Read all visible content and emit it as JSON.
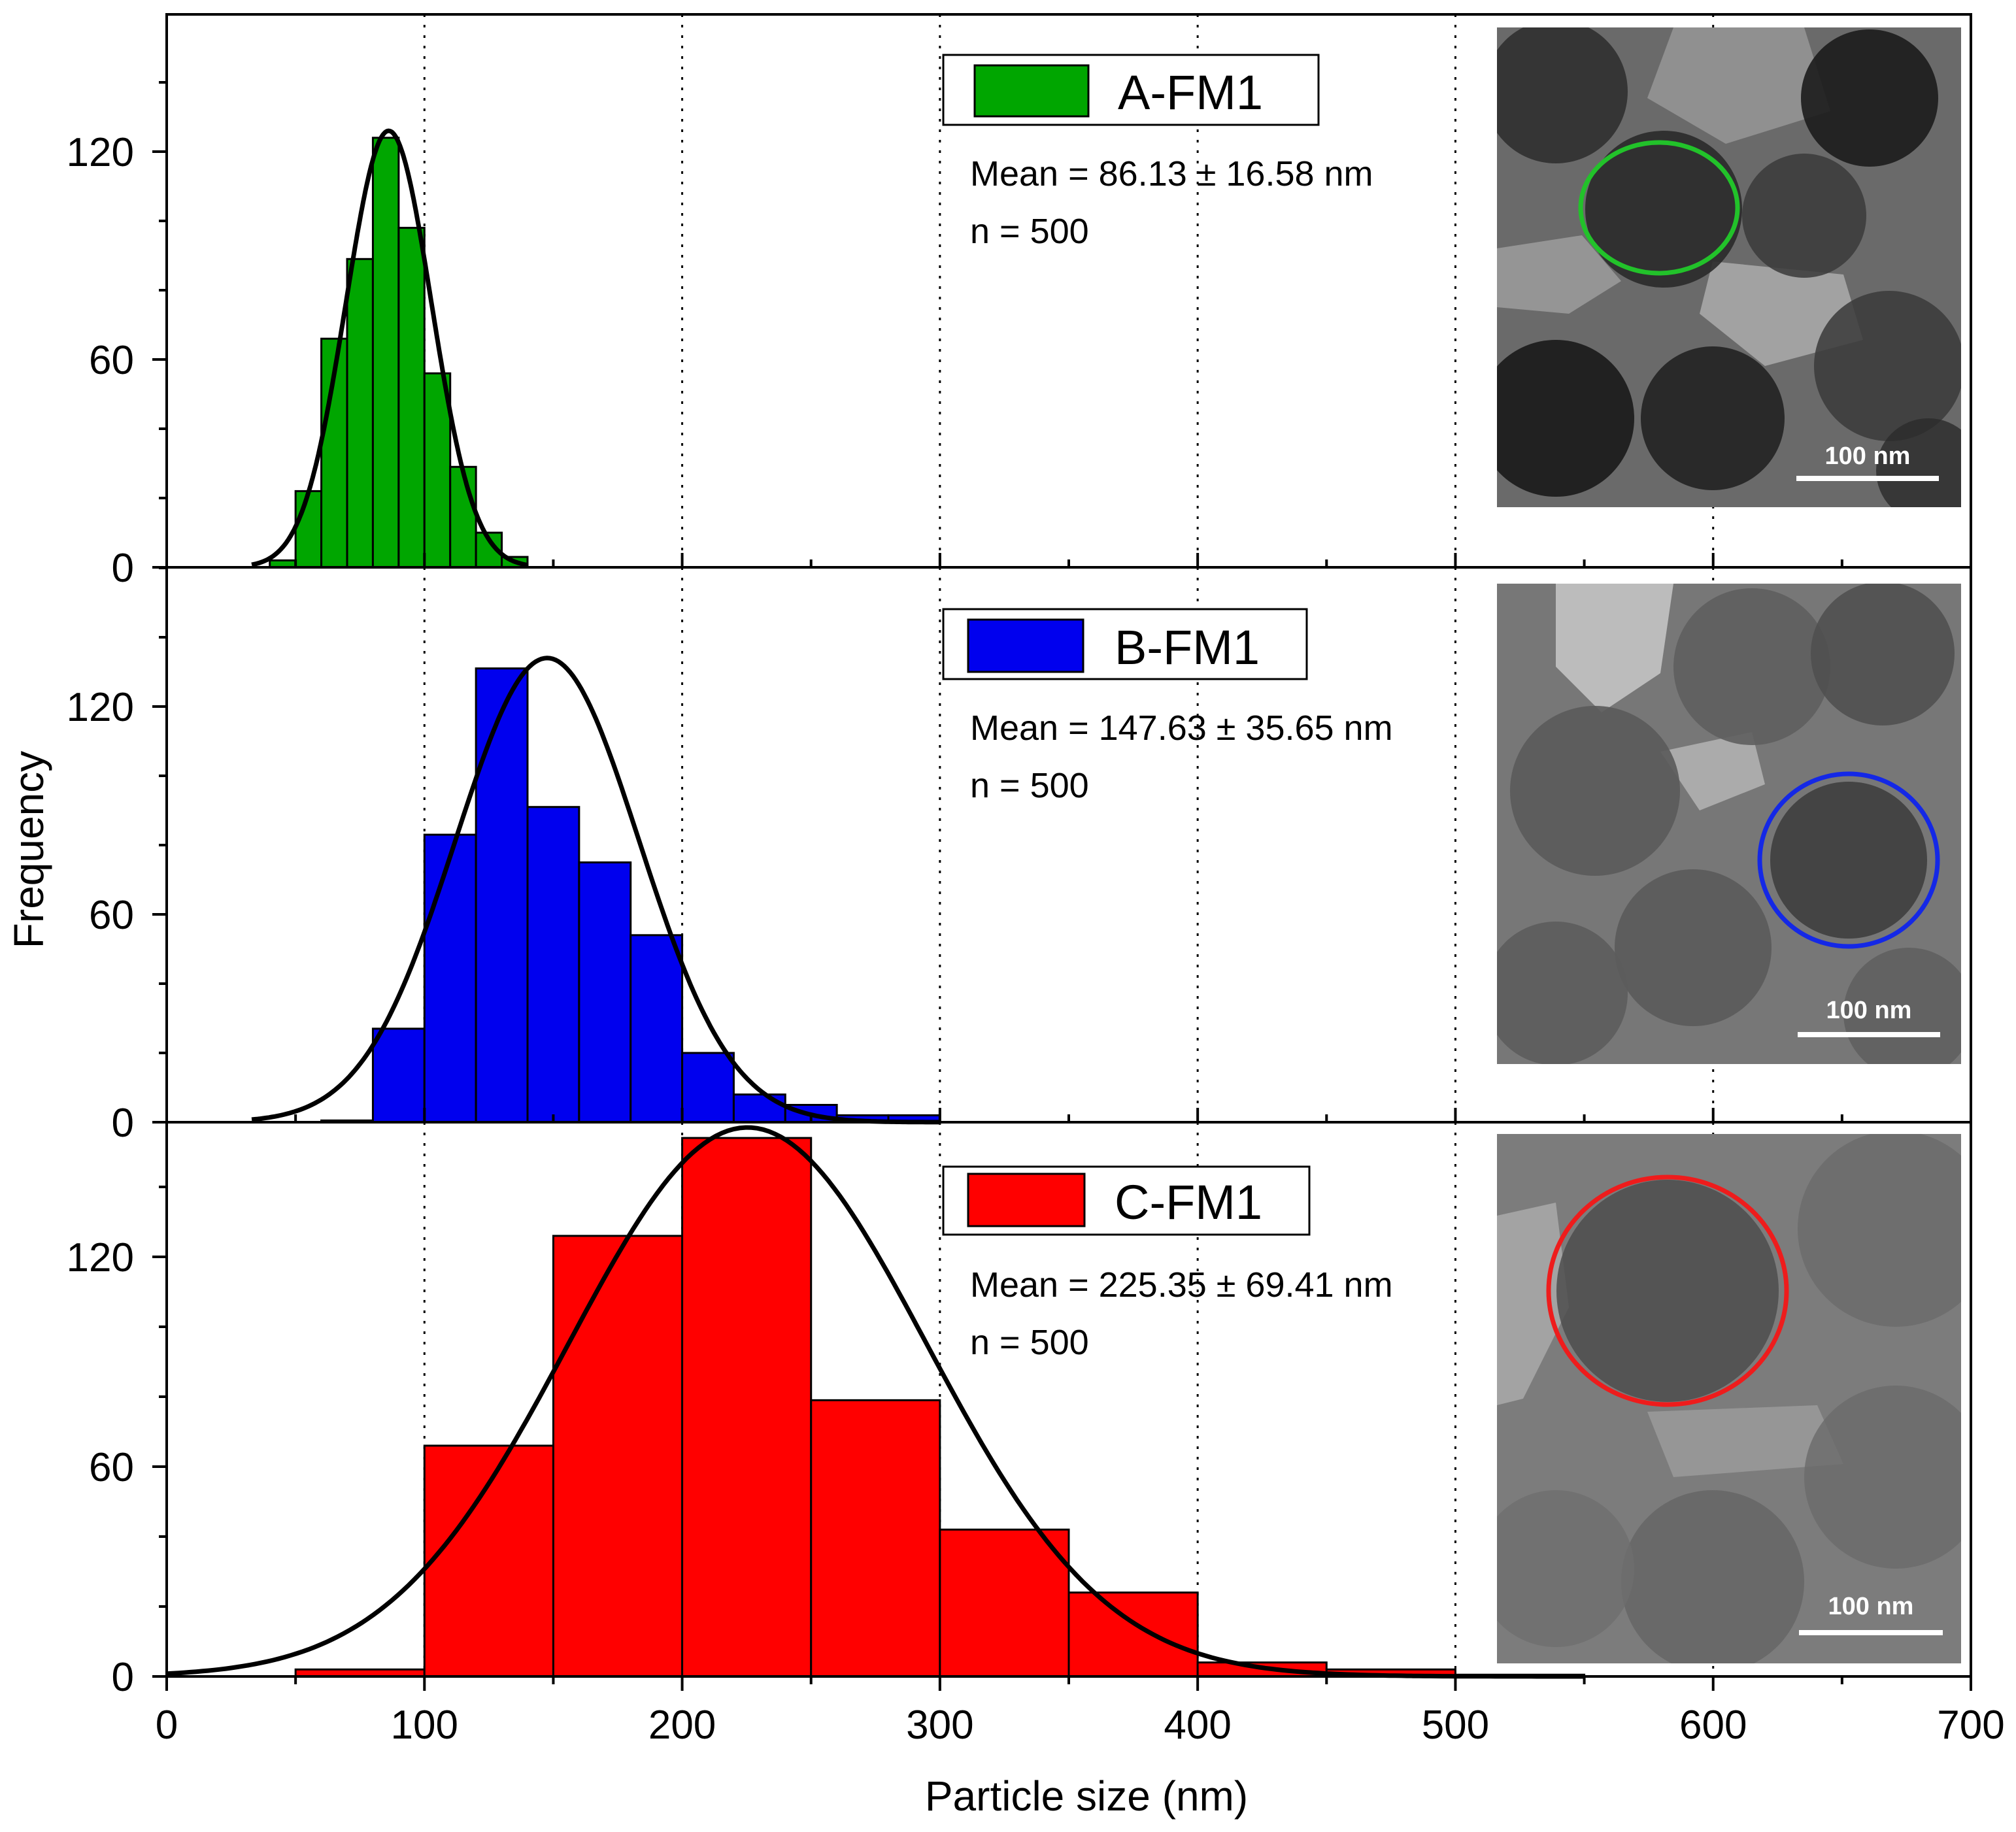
{
  "chart_data": {
    "type": "bar",
    "shared_x": {
      "label": "Particle size (nm)",
      "range": [
        0,
        700
      ],
      "ticks": [
        0,
        100,
        200,
        300,
        400,
        500,
        600,
        700
      ],
      "tick_labels": [
        "0",
        "100",
        "200",
        "300",
        "400",
        "500",
        "600",
        "700"
      ],
      "grid": "dotted vertical lines at 100, 200, 300, 400, 500, 600"
    },
    "ylabel": "Frequency",
    "panels": [
      {
        "name": "A-FM1",
        "color": "#00a600",
        "ylim": [
          0,
          160
        ],
        "yticks": [
          0,
          60,
          120
        ],
        "ytick_labels": [
          "0",
          "60",
          "120"
        ],
        "bin_width": 10,
        "bins": [
          {
            "x0": 40,
            "x1": 50,
            "value": 2
          },
          {
            "x0": 50,
            "x1": 60,
            "value": 22
          },
          {
            "x0": 60,
            "x1": 70,
            "value": 66
          },
          {
            "x0": 70,
            "x1": 80,
            "value": 89
          },
          {
            "x0": 80,
            "x1": 90,
            "value": 124
          },
          {
            "x0": 90,
            "x1": 100,
            "value": 98
          },
          {
            "x0": 100,
            "x1": 110,
            "value": 56
          },
          {
            "x0": 110,
            "x1": 120,
            "value": 29
          },
          {
            "x0": 120,
            "x1": 130,
            "value": 10
          },
          {
            "x0": 130,
            "x1": 140,
            "value": 3
          }
        ],
        "fit": {
          "mean": 86.13,
          "sd": 16.58,
          "peak": 126,
          "range": [
            33,
            140
          ]
        },
        "legend_label": "A-FM1",
        "mean_text": "Mean = 86.13 ± 16.58 nm",
        "n_text": "n = 500",
        "tem_scale": "100 nm",
        "circle_color": "#22c22a"
      },
      {
        "name": "B-FM1",
        "color": "#0000ee",
        "ylim": [
          0,
          160
        ],
        "yticks": [
          0,
          60,
          120
        ],
        "ytick_labels": [
          "0",
          "60",
          "120"
        ],
        "bin_width": 20,
        "bins": [
          {
            "x0": 60,
            "x1": 80,
            "value": 0.5
          },
          {
            "x0": 80,
            "x1": 100,
            "value": 27
          },
          {
            "x0": 100,
            "x1": 120,
            "value": 83
          },
          {
            "x0": 120,
            "x1": 140,
            "value": 131
          },
          {
            "x0": 140,
            "x1": 160,
            "value": 91
          },
          {
            "x0": 160,
            "x1": 180,
            "value": 75
          },
          {
            "x0": 180,
            "x1": 200,
            "value": 54
          },
          {
            "x0": 200,
            "x1": 220,
            "value": 20
          },
          {
            "x0": 220,
            "x1": 240,
            "value": 8
          },
          {
            "x0": 240,
            "x1": 260,
            "value": 5
          },
          {
            "x0": 260,
            "x1": 280,
            "value": 2
          },
          {
            "x0": 280,
            "x1": 300,
            "value": 2
          }
        ],
        "fit": {
          "mean": 147.63,
          "sd": 35.65,
          "peak": 134,
          "range": [
            33,
            300
          ]
        },
        "legend_label": "B-FM1",
        "mean_text": "Mean = 147.63 ± 35.65 nm",
        "n_text": "n = 500",
        "tem_scale": "100 nm",
        "circle_color": "#1428e6"
      },
      {
        "name": "C-FM1",
        "color": "#ff0000",
        "ylim": [
          0,
          160
        ],
        "yticks": [
          0,
          60,
          120
        ],
        "ytick_labels": [
          "0",
          "60",
          "120"
        ],
        "bin_width": 50,
        "bins": [
          {
            "x0": 50,
            "x1": 100,
            "value": 2
          },
          {
            "x0": 100,
            "x1": 150,
            "value": 66
          },
          {
            "x0": 150,
            "x1": 200,
            "value": 126
          },
          {
            "x0": 200,
            "x1": 250,
            "value": 154
          },
          {
            "x0": 250,
            "x1": 300,
            "value": 79
          },
          {
            "x0": 300,
            "x1": 350,
            "value": 42
          },
          {
            "x0": 350,
            "x1": 400,
            "value": 24
          },
          {
            "x0": 400,
            "x1": 450,
            "value": 4
          },
          {
            "x0": 450,
            "x1": 500,
            "value": 2
          },
          {
            "x0": 500,
            "x1": 550,
            "value": 0.5
          }
        ],
        "fit": {
          "mean": 225.35,
          "sd": 69.41,
          "peak": 157,
          "range": [
            0,
            550
          ]
        },
        "legend_label": "C-FM1",
        "mean_text": "Mean = 225.35 ± 69.41 nm",
        "n_text": "n = 500",
        "tem_scale": "100 nm",
        "circle_color": "#ee1c1c"
      }
    ]
  }
}
